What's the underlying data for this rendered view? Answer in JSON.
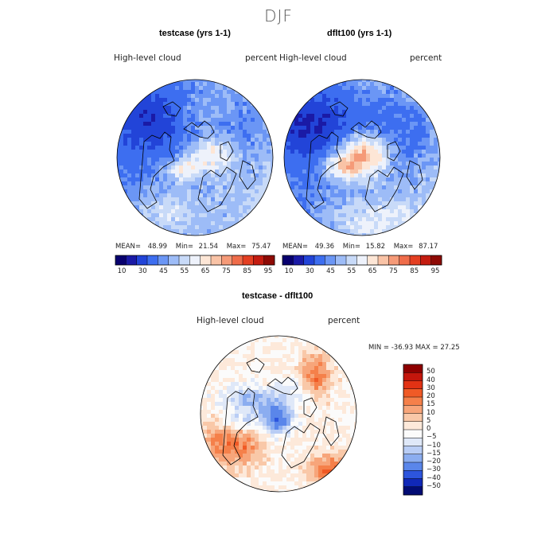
{
  "season_title": "DJF",
  "panels": [
    {
      "title": "testcase (yrs 1-1)",
      "left_label": "High-level cloud",
      "right_label": "percent",
      "stats": {
        "mean_label": "MEAN=",
        "mean": "48.99",
        "min_label": "Min=",
        "min": "21.54",
        "max_label": "Max=",
        "max": "75.47"
      }
    },
    {
      "title": "dflt100 (yrs 1-1)",
      "left_label": "High-level cloud",
      "right_label": "percent",
      "stats": {
        "mean_label": "MEAN=",
        "mean": "49.36",
        "min_label": "Min=",
        "min": "15.82",
        "max_label": "Max=",
        "max": "87.17"
      }
    },
    {
      "title": "testcase - dflt100",
      "left_label": "High-level cloud",
      "right_label": "percent",
      "stats_text": "MIN = -36.93 MAX =  27.25"
    }
  ],
  "colorbar_main": {
    "labels": [
      "10",
      "30",
      "45",
      "55",
      "65",
      "75",
      "85",
      "95"
    ],
    "colors": [
      "#08006e",
      "#1a1aa6",
      "#2244d8",
      "#3d6ef0",
      "#6b96f5",
      "#9dbcf7",
      "#c8daf8",
      "#eef2fb",
      "#fde6d6",
      "#f9c3a6",
      "#f59a78",
      "#ef6c4a",
      "#e43f22",
      "#c41c10",
      "#8e0a05"
    ]
  },
  "colorbar_diff": {
    "labels": [
      "50",
      "40",
      "30",
      "20",
      "15",
      "10",
      "5",
      "0",
      "−5",
      "−10",
      "−15",
      "−20",
      "−30",
      "−40",
      "−50"
    ],
    "colors": [
      "#8e0000",
      "#c4160c",
      "#e23214",
      "#f05a26",
      "#f5804a",
      "#f7a57a",
      "#f9c8a8",
      "#fde9da",
      "#fbfbfb",
      "#dfe8f8",
      "#b9cdf5",
      "#8badf0",
      "#5a86ea",
      "#2d55dd",
      "#1028b8",
      "#020c74"
    ]
  },
  "chart_data": [
    {
      "type": "heatmap",
      "projection": "north polar stereographic",
      "title": "testcase (yrs 1-1)",
      "variable": "High-level cloud",
      "units": "percent",
      "mean": 48.99,
      "min": 21.54,
      "max": 75.47,
      "contour_levels": [
        10,
        30,
        45,
        55,
        65,
        75,
        85,
        95
      ]
    },
    {
      "type": "heatmap",
      "projection": "north polar stereographic",
      "title": "dflt100 (yrs 1-1)",
      "variable": "High-level cloud",
      "units": "percent",
      "mean": 49.36,
      "min": 15.82,
      "max": 87.17,
      "contour_levels": [
        10,
        30,
        45,
        55,
        65,
        75,
        85,
        95
      ]
    },
    {
      "type": "heatmap",
      "projection": "north polar stereographic",
      "title": "testcase - dflt100",
      "variable": "High-level cloud",
      "units": "percent",
      "min": -36.93,
      "max": 27.25,
      "contour_levels": [
        -50,
        -40,
        -30,
        -20,
        -15,
        -10,
        -5,
        0,
        5,
        10,
        15,
        20,
        30,
        40,
        50
      ]
    }
  ]
}
